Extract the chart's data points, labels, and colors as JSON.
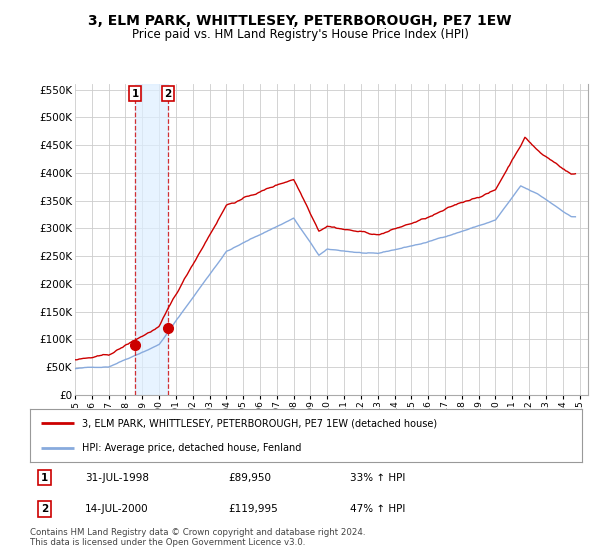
{
  "title": "3, ELM PARK, WHITTLESEY, PETERBOROUGH, PE7 1EW",
  "subtitle": "Price paid vs. HM Land Registry's House Price Index (HPI)",
  "title_fontsize": 10,
  "subtitle_fontsize": 8.5,
  "background_color": "#ffffff",
  "plot_bg_color": "#ffffff",
  "grid_color": "#cccccc",
  "ylim": [
    0,
    560000
  ],
  "yticks": [
    0,
    50000,
    100000,
    150000,
    200000,
    250000,
    300000,
    350000,
    400000,
    450000,
    500000,
    550000
  ],
  "ytick_labels": [
    "£0",
    "£50K",
    "£100K",
    "£150K",
    "£200K",
    "£250K",
    "£300K",
    "£350K",
    "£400K",
    "£450K",
    "£500K",
    "£550K"
  ],
  "xlim_start": 1995.0,
  "xlim_end": 2025.5,
  "red_line_color": "#cc0000",
  "blue_line_color": "#88aadd",
  "shade_color": "#ddeeff",
  "red_line_label": "3, ELM PARK, WHITTLESEY, PETERBOROUGH, PE7 1EW (detached house)",
  "blue_line_label": "HPI: Average price, detached house, Fenland",
  "transaction1_x": 1998.58,
  "transaction1_y": 89950,
  "transaction1_label": "1",
  "transaction1_date": "31-JUL-1998",
  "transaction1_price": "£89,950",
  "transaction1_hpi": "33% ↑ HPI",
  "transaction2_x": 2000.54,
  "transaction2_y": 119995,
  "transaction2_label": "2",
  "transaction2_date": "14-JUL-2000",
  "transaction2_price": "£119,995",
  "transaction2_hpi": "47% ↑ HPI",
  "footer_text": "Contains HM Land Registry data © Crown copyright and database right 2024.\nThis data is licensed under the Open Government Licence v3.0."
}
